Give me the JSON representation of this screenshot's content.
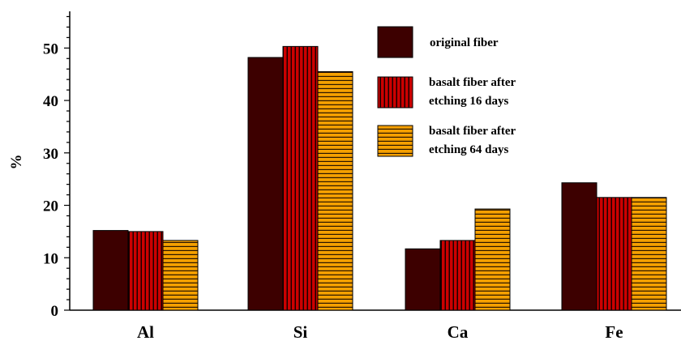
{
  "chart_data": {
    "type": "bar",
    "title": "",
    "xlabel": "",
    "ylabel": "%",
    "ylim": [
      0,
      57
    ],
    "yticks": [
      "0",
      "10",
      "20",
      "30",
      "40",
      "50"
    ],
    "categories": [
      "Al",
      "Si",
      "Ca",
      "Fe"
    ],
    "series": [
      {
        "name": "original fiber",
        "values": [
          15.2,
          48.2,
          11.7,
          24.3
        ],
        "color": "#3d0000",
        "pattern": "solid"
      },
      {
        "name": "basalt fiber after etching  16 days",
        "legend_lines": [
          "basalt fiber after",
          "etching  16 days"
        ],
        "values": [
          15.0,
          50.3,
          13.3,
          21.5
        ],
        "color": "#cc0000",
        "pattern": "vertical-stripes"
      },
      {
        "name": "basalt fiber after etching  64 days",
        "legend_lines": [
          "basalt fiber after",
          "etching  64 days"
        ],
        "values": [
          13.3,
          45.5,
          19.3,
          21.5
        ],
        "color": "#f5a000",
        "pattern": "horizontal-stripes"
      }
    ],
    "legend_position": "top-right",
    "grid": false
  }
}
